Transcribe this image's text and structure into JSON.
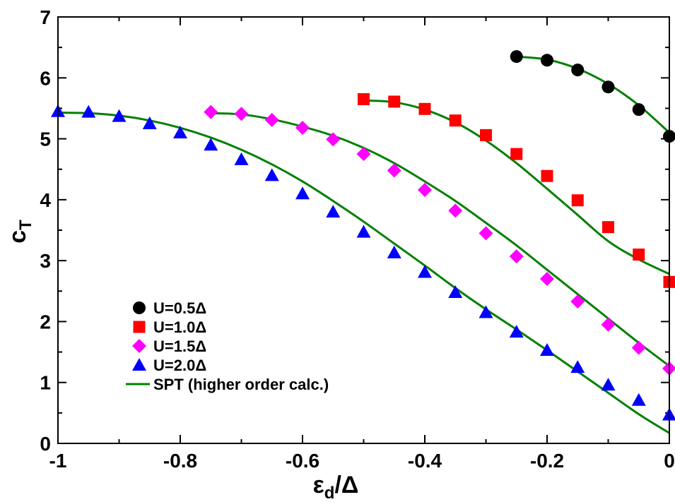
{
  "chart_data": {
    "type": "scatter",
    "xlabel": {
      "main": "ε",
      "sub": "d",
      "tail": "/Δ"
    },
    "ylabel": {
      "main": "c",
      "sub": "T"
    },
    "xlim": [
      -1,
      0
    ],
    "ylim": [
      0,
      7
    ],
    "xticks": [
      -1,
      -0.8,
      -0.6,
      -0.4,
      -0.2,
      0
    ],
    "xtick_labels": [
      "-1",
      "-0.8",
      "-0.6",
      "-0.4",
      "-0.2",
      "0"
    ],
    "yticks": [
      0,
      1,
      2,
      3,
      4,
      5,
      6,
      7
    ],
    "ytick_labels": [
      "0",
      "1",
      "2",
      "3",
      "4",
      "5",
      "6",
      "7"
    ],
    "grid": false,
    "legend_position": "bottom-left",
    "series": [
      {
        "name": "U=0.5Δ",
        "marker": "circle",
        "color": "#000000",
        "x": [
          -0.25,
          -0.2,
          -0.15,
          -0.1,
          -0.05,
          0
        ],
        "y": [
          6.35,
          6.29,
          6.13,
          5.85,
          5.48,
          5.04
        ]
      },
      {
        "name": "U=1.0Δ",
        "marker": "square",
        "color": "#ff0000",
        "x": [
          -0.5,
          -0.45,
          -0.4,
          -0.35,
          -0.3,
          -0.25,
          -0.2,
          -0.15,
          -0.1,
          -0.05,
          0
        ],
        "y": [
          5.65,
          5.61,
          5.49,
          5.3,
          5.06,
          4.75,
          4.39,
          3.99,
          3.55,
          3.1,
          2.65
        ]
      },
      {
        "name": "U=1.5Δ",
        "marker": "diamond",
        "color": "#ff00ff",
        "x": [
          -0.75,
          -0.7,
          -0.65,
          -0.6,
          -0.55,
          -0.5,
          -0.45,
          -0.4,
          -0.35,
          -0.3,
          -0.25,
          -0.2,
          -0.15,
          -0.1,
          -0.05,
          0
        ],
        "y": [
          5.44,
          5.41,
          5.31,
          5.18,
          4.99,
          4.75,
          4.48,
          4.16,
          3.82,
          3.45,
          3.07,
          2.7,
          2.33,
          1.95,
          1.57,
          1.23
        ]
      },
      {
        "name": "U=2.0Δ",
        "marker": "triangle",
        "color": "#0000ff",
        "x": [
          -1,
          -0.95,
          -0.9,
          -0.85,
          -0.8,
          -0.75,
          -0.7,
          -0.65,
          -0.6,
          -0.55,
          -0.5,
          -0.45,
          -0.4,
          -0.35,
          -0.3,
          -0.25,
          -0.2,
          -0.15,
          -0.1,
          -0.05,
          0
        ],
        "y": [
          5.45,
          5.44,
          5.37,
          5.25,
          5.1,
          4.9,
          4.66,
          4.4,
          4.1,
          3.8,
          3.47,
          3.13,
          2.81,
          2.48,
          2.15,
          1.83,
          1.53,
          1.25,
          0.96,
          0.71,
          0.47
        ]
      }
    ],
    "lines": [
      {
        "name": "SPT (higher order calc.)",
        "color": "#008000",
        "segments": [
          {
            "x": [
              -0.25,
              -0.2,
              -0.15,
              -0.1,
              -0.05,
              0
            ],
            "y": [
              6.35,
              6.3,
              6.15,
              5.9,
              5.55,
              5.1
            ]
          },
          {
            "x": [
              -0.5,
              -0.45,
              -0.4,
              -0.35,
              -0.3,
              -0.25,
              -0.2,
              -0.15,
              -0.1,
              -0.05,
              0
            ],
            "y": [
              5.63,
              5.6,
              5.48,
              5.27,
              4.97,
              4.6,
              4.18,
              3.75,
              3.32,
              3.02,
              2.78
            ]
          },
          {
            "x": [
              -0.75,
              -0.7,
              -0.65,
              -0.6,
              -0.55,
              -0.5,
              -0.45,
              -0.4,
              -0.35,
              -0.3,
              -0.25,
              -0.2,
              -0.15,
              -0.1,
              -0.05,
              0
            ],
            "y": [
              5.42,
              5.4,
              5.32,
              5.2,
              5.05,
              4.85,
              4.6,
              4.3,
              3.98,
              3.62,
              3.25,
              2.85,
              2.45,
              2.05,
              1.65,
              1.27
            ]
          },
          {
            "x": [
              -1,
              -0.95,
              -0.9,
              -0.85,
              -0.8,
              -0.75,
              -0.7,
              -0.65,
              -0.6,
              -0.55,
              -0.5,
              -0.45,
              -0.4,
              -0.35,
              -0.3,
              -0.25,
              -0.2,
              -0.15,
              -0.1,
              -0.05,
              0
            ],
            "y": [
              5.43,
              5.42,
              5.38,
              5.3,
              5.18,
              5.02,
              4.82,
              4.58,
              4.3,
              3.98,
              3.64,
              3.28,
              2.92,
              2.55,
              2.2,
              1.87,
              1.53,
              1.18,
              0.83,
              0.48,
              0.17
            ]
          }
        ]
      }
    ]
  }
}
